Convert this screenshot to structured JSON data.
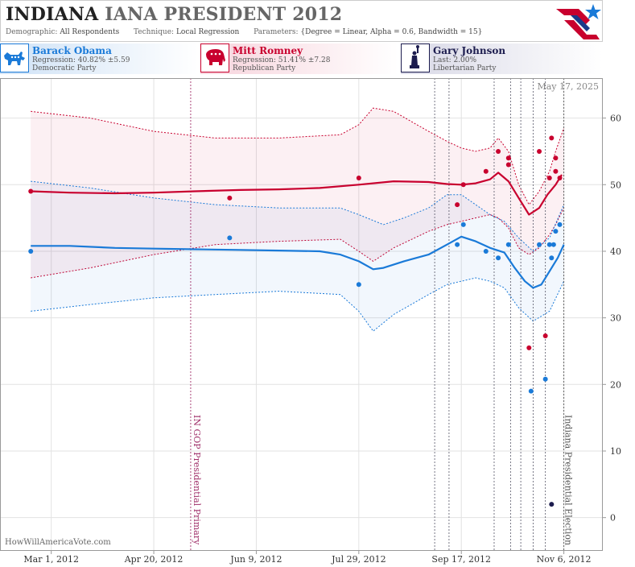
{
  "header": {
    "title_state": "INDIANA",
    "title_rest": "IANA PRESIDENT 2012",
    "demographic_label": "Demographic:",
    "demographic_value": "All Respondents",
    "technique_label": "Technique:",
    "technique_value": "Local Regression",
    "parameters_label": "Parameters:",
    "parameters_value": "{Degree = Linear, Alpha = 0.6, Bandwidth = 15}"
  },
  "candidates": [
    {
      "name": "Barack Obama",
      "stat": "Regression: 40.82% ±5.59",
      "party": "Democratic Party",
      "color": "#1a7ad8",
      "icon": "donkey-icon"
    },
    {
      "name": "Mitt Romney",
      "stat": "Regression: 51.41% ±7.28",
      "party": "Republican Party",
      "color": "#c8002e",
      "icon": "elephant-icon"
    },
    {
      "name": "Gary Johnson",
      "stat": "Last: 2.00%",
      "party": "Libertarian Party",
      "color": "#1c1c4e",
      "icon": "liberty-statue-icon"
    }
  ],
  "watermark": "HowWillAmericaVote.com",
  "chart_data": {
    "type": "line",
    "date_label": "May 17, 2025",
    "x_tick_labels": [
      "Mar 1, 2012",
      "Apr 20, 2012",
      "Jun 9, 2012",
      "Jul 29, 2012",
      "Sep 17, 2012",
      "Nov 6, 2012"
    ],
    "x_tick_dates": [
      "2012-03-01",
      "2012-04-20",
      "2012-06-09",
      "2012-07-29",
      "2012-09-17",
      "2012-11-06"
    ],
    "xlim": [
      "2012-02-05",
      "2012-11-25"
    ],
    "ylim": [
      -5,
      66
    ],
    "y_ticks": [
      0,
      10,
      20,
      30,
      40,
      50,
      60
    ],
    "grid": true,
    "events": [
      {
        "date": "2012-05-08",
        "label": "IN GOP Presidential Primary",
        "color": "#a0306a"
      },
      {
        "date": "2012-11-06",
        "label": "Indiana Presidential Election",
        "color": "#555555"
      }
    ],
    "debate_markers": [
      "2012-09-04",
      "2012-09-11",
      "2012-10-03",
      "2012-10-11",
      "2012-10-16",
      "2012-10-22",
      "2012-10-28"
    ],
    "series": [
      {
        "name": "Mitt Romney",
        "color": "#c8002e",
        "trend": [
          [
            "2012-02-20",
            49
          ],
          [
            "2012-03-10",
            48.8
          ],
          [
            "2012-04-01",
            48.7
          ],
          [
            "2012-04-20",
            48.8
          ],
          [
            "2012-05-10",
            49
          ],
          [
            "2012-06-01",
            49.2
          ],
          [
            "2012-06-20",
            49.3
          ],
          [
            "2012-07-10",
            49.5
          ],
          [
            "2012-07-29",
            50
          ],
          [
            "2012-08-15",
            50.5
          ],
          [
            "2012-09-01",
            50.4
          ],
          [
            "2012-09-10",
            50.1
          ],
          [
            "2012-09-17",
            50
          ],
          [
            "2012-09-24",
            50.2
          ],
          [
            "2012-10-01",
            50.8
          ],
          [
            "2012-10-05",
            51.8
          ],
          [
            "2012-10-10",
            50.5
          ],
          [
            "2012-10-15",
            48
          ],
          [
            "2012-10-20",
            45.5
          ],
          [
            "2012-10-25",
            46.5
          ],
          [
            "2012-10-29",
            48.5
          ],
          [
            "2012-11-02",
            50
          ],
          [
            "2012-11-05",
            51.5
          ]
        ],
        "upper": [
          [
            "2012-02-20",
            61
          ],
          [
            "2012-03-20",
            60
          ],
          [
            "2012-04-20",
            58
          ],
          [
            "2012-05-20",
            57
          ],
          [
            "2012-06-20",
            57
          ],
          [
            "2012-07-20",
            57.5
          ],
          [
            "2012-07-29",
            59
          ],
          [
            "2012-08-05",
            61.5
          ],
          [
            "2012-08-15",
            61
          ],
          [
            "2012-09-01",
            58
          ],
          [
            "2012-09-10",
            56.5
          ],
          [
            "2012-09-17",
            55.5
          ],
          [
            "2012-09-24",
            55
          ],
          [
            "2012-10-01",
            55.5
          ],
          [
            "2012-10-05",
            57
          ],
          [
            "2012-10-10",
            55
          ],
          [
            "2012-10-15",
            50
          ],
          [
            "2012-10-20",
            47
          ],
          [
            "2012-10-25",
            49
          ],
          [
            "2012-10-30",
            52
          ],
          [
            "2012-11-02",
            55
          ],
          [
            "2012-11-06",
            58.5
          ]
        ],
        "lower": [
          [
            "2012-02-20",
            36
          ],
          [
            "2012-03-20",
            37.5
          ],
          [
            "2012-04-20",
            39.5
          ],
          [
            "2012-05-20",
            41
          ],
          [
            "2012-06-20",
            41.5
          ],
          [
            "2012-07-20",
            41.8
          ],
          [
            "2012-07-29",
            40
          ],
          [
            "2012-08-05",
            38.5
          ],
          [
            "2012-08-15",
            40.5
          ],
          [
            "2012-09-01",
            43
          ],
          [
            "2012-09-10",
            44
          ],
          [
            "2012-09-17",
            44.5
          ],
          [
            "2012-09-24",
            45
          ],
          [
            "2012-10-01",
            45.5
          ],
          [
            "2012-10-05",
            45
          ],
          [
            "2012-10-10",
            43.5
          ],
          [
            "2012-10-15",
            40.5
          ],
          [
            "2012-10-20",
            39.5
          ],
          [
            "2012-10-25",
            40.5
          ],
          [
            "2012-10-30",
            42.5
          ],
          [
            "2012-11-02",
            44
          ],
          [
            "2012-11-06",
            46.5
          ]
        ],
        "points": [
          [
            "2012-02-20",
            49
          ],
          [
            "2012-05-27",
            48
          ],
          [
            "2012-07-29",
            51
          ],
          [
            "2012-09-15",
            47
          ],
          [
            "2012-09-18",
            50
          ],
          [
            "2012-09-29",
            52
          ],
          [
            "2012-10-05",
            55
          ],
          [
            "2012-10-10",
            53
          ],
          [
            "2012-10-10",
            54
          ],
          [
            "2012-10-20",
            25.5
          ],
          [
            "2012-10-25",
            55
          ],
          [
            "2012-10-28",
            27.3
          ],
          [
            "2012-10-31",
            57
          ],
          [
            "2012-10-30",
            51
          ],
          [
            "2012-11-02",
            52
          ],
          [
            "2012-11-02",
            54
          ],
          [
            "2012-11-04",
            51
          ]
        ]
      },
      {
        "name": "Barack Obama",
        "color": "#1a7ad8",
        "trend": [
          [
            "2012-02-20",
            40.8
          ],
          [
            "2012-03-10",
            40.8
          ],
          [
            "2012-04-01",
            40.5
          ],
          [
            "2012-04-20",
            40.4
          ],
          [
            "2012-05-10",
            40.3
          ],
          [
            "2012-06-01",
            40.2
          ],
          [
            "2012-06-20",
            40.1
          ],
          [
            "2012-07-10",
            40
          ],
          [
            "2012-07-20",
            39.5
          ],
          [
            "2012-07-29",
            38.5
          ],
          [
            "2012-08-05",
            37.3
          ],
          [
            "2012-08-10",
            37.5
          ],
          [
            "2012-08-20",
            38.5
          ],
          [
            "2012-09-01",
            39.5
          ],
          [
            "2012-09-10",
            41
          ],
          [
            "2012-09-17",
            42.2
          ],
          [
            "2012-09-24",
            41.5
          ],
          [
            "2012-10-01",
            40.5
          ],
          [
            "2012-10-08",
            39.8
          ],
          [
            "2012-10-13",
            37.5
          ],
          [
            "2012-10-18",
            35.5
          ],
          [
            "2012-10-22",
            34.5
          ],
          [
            "2012-10-26",
            35
          ],
          [
            "2012-10-30",
            37
          ],
          [
            "2012-11-03",
            39
          ],
          [
            "2012-11-06",
            41
          ]
        ],
        "upper": [
          [
            "2012-02-20",
            50.5
          ],
          [
            "2012-03-20",
            49.5
          ],
          [
            "2012-04-20",
            48
          ],
          [
            "2012-05-20",
            47
          ],
          [
            "2012-06-20",
            46.5
          ],
          [
            "2012-07-20",
            46.5
          ],
          [
            "2012-07-29",
            45.5
          ],
          [
            "2012-08-10",
            44
          ],
          [
            "2012-08-20",
            45
          ],
          [
            "2012-09-01",
            46.5
          ],
          [
            "2012-09-10",
            48.5
          ],
          [
            "2012-09-17",
            48.5
          ],
          [
            "2012-09-24",
            47
          ],
          [
            "2012-10-01",
            45.5
          ],
          [
            "2012-10-08",
            44.5
          ],
          [
            "2012-10-15",
            42
          ],
          [
            "2012-10-22",
            40
          ],
          [
            "2012-10-30",
            42
          ],
          [
            "2012-11-06",
            47
          ]
        ],
        "lower": [
          [
            "2012-02-20",
            31
          ],
          [
            "2012-03-20",
            32
          ],
          [
            "2012-04-20",
            33
          ],
          [
            "2012-05-20",
            33.5
          ],
          [
            "2012-06-20",
            34
          ],
          [
            "2012-07-20",
            33.5
          ],
          [
            "2012-07-29",
            31
          ],
          [
            "2012-08-05",
            28
          ],
          [
            "2012-08-15",
            30.5
          ],
          [
            "2012-09-01",
            33.5
          ],
          [
            "2012-09-10",
            35
          ],
          [
            "2012-09-17",
            35.5
          ],
          [
            "2012-09-24",
            36
          ],
          [
            "2012-10-01",
            35.5
          ],
          [
            "2012-10-08",
            34.5
          ],
          [
            "2012-10-15",
            31.5
          ],
          [
            "2012-10-22",
            29.5
          ],
          [
            "2012-10-30",
            31
          ],
          [
            "2012-11-06",
            35.5
          ]
        ],
        "points": [
          [
            "2012-02-20",
            40
          ],
          [
            "2012-05-27",
            42
          ],
          [
            "2012-07-29",
            35
          ],
          [
            "2012-09-15",
            41
          ],
          [
            "2012-09-18",
            44
          ],
          [
            "2012-09-29",
            40
          ],
          [
            "2012-10-05",
            39
          ],
          [
            "2012-10-10",
            41
          ],
          [
            "2012-10-21",
            19
          ],
          [
            "2012-10-25",
            41
          ],
          [
            "2012-10-28",
            20.8
          ],
          [
            "2012-10-31",
            39
          ],
          [
            "2012-10-30",
            41
          ],
          [
            "2012-11-01",
            41
          ],
          [
            "2012-11-02",
            43
          ],
          [
            "2012-11-04",
            44
          ]
        ]
      },
      {
        "name": "Gary Johnson",
        "color": "#1c1c4e",
        "trend": [],
        "upper": [],
        "lower": [],
        "points": [
          [
            "2012-10-31",
            2
          ]
        ]
      }
    ]
  }
}
